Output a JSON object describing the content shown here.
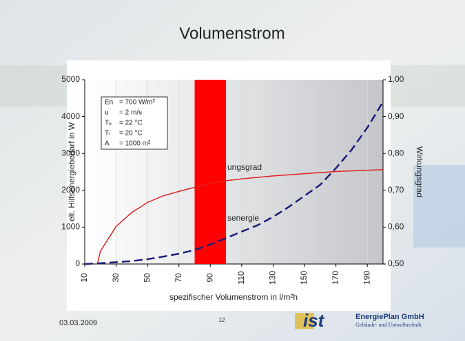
{
  "header": {
    "title": "Volumenstrom"
  },
  "chart_data": {
    "type": "line",
    "y_label": "elt. Hilfsenergiebedarf in W",
    "y2_label": "Wirkungsgrad",
    "x_label": "spezifischer Volumenstrom in l/m²h",
    "xlim": [
      10,
      200
    ],
    "xticks": [
      10,
      30,
      50,
      70,
      90,
      110,
      130,
      150,
      170,
      190
    ],
    "ylim": [
      0,
      5000
    ],
    "yticks": [
      0,
      1000,
      2000,
      3000,
      4000,
      5000
    ],
    "y2lim": [
      0.5,
      1.0
    ],
    "y2ticks": [
      {
        "value": 0.5,
        "label": "0,50"
      },
      {
        "value": 0.6,
        "label": "0,60"
      },
      {
        "value": 0.7,
        "label": "0,70"
      },
      {
        "value": 0.8,
        "label": "0,80"
      },
      {
        "value": 0.9,
        "label": "0,90"
      },
      {
        "value": 1.0,
        "label": "1,00"
      }
    ],
    "highlight": {
      "x": [
        80,
        100
      ],
      "color": "#ff0000"
    },
    "series": [
      {
        "color": "#e02020",
        "axis": "y2",
        "dash": false,
        "x": [
          18,
          20,
          30,
          40,
          50,
          60,
          70,
          80,
          90,
          100,
          110,
          130,
          150,
          170,
          200
        ],
        "values": [
          0.5,
          0.535,
          0.602,
          0.64,
          0.667,
          0.685,
          0.697,
          0.708,
          0.718,
          0.726,
          0.731,
          0.739,
          0.745,
          0.751,
          0.756
        ]
      },
      {
        "color": "#1c1c78",
        "axis": "y",
        "dash": true,
        "x": [
          10,
          20,
          30,
          40,
          50,
          60,
          70,
          80,
          90,
          100,
          110,
          120,
          130,
          140,
          150,
          160,
          170,
          180,
          190,
          200
        ],
        "values": [
          0,
          20,
          50,
          80,
          130,
          200,
          280,
          380,
          530,
          700,
          880,
          1050,
          1280,
          1550,
          1850,
          2150,
          2600,
          3100,
          3700,
          4400
        ]
      }
    ],
    "annotations": [
      "ungsgrad",
      "senergie"
    ],
    "info_box": [
      {
        "name": "En",
        "value": "= 700 W/m²"
      },
      {
        "name": "u",
        "value": "= 2 m/s"
      },
      {
        "name": "Tₑ",
        "value": "= 22 °C"
      },
      {
        "name": "Tₗ",
        "value": "= 20 °C"
      },
      {
        "name": "A",
        "value": "= 1000 m²"
      }
    ]
  },
  "footer": {
    "date": "03.03.2009",
    "page": "12",
    "logo": "ist",
    "company": "EnergiePlan GmbH",
    "tagline": "Gebäude- und Umwelttechnik"
  }
}
